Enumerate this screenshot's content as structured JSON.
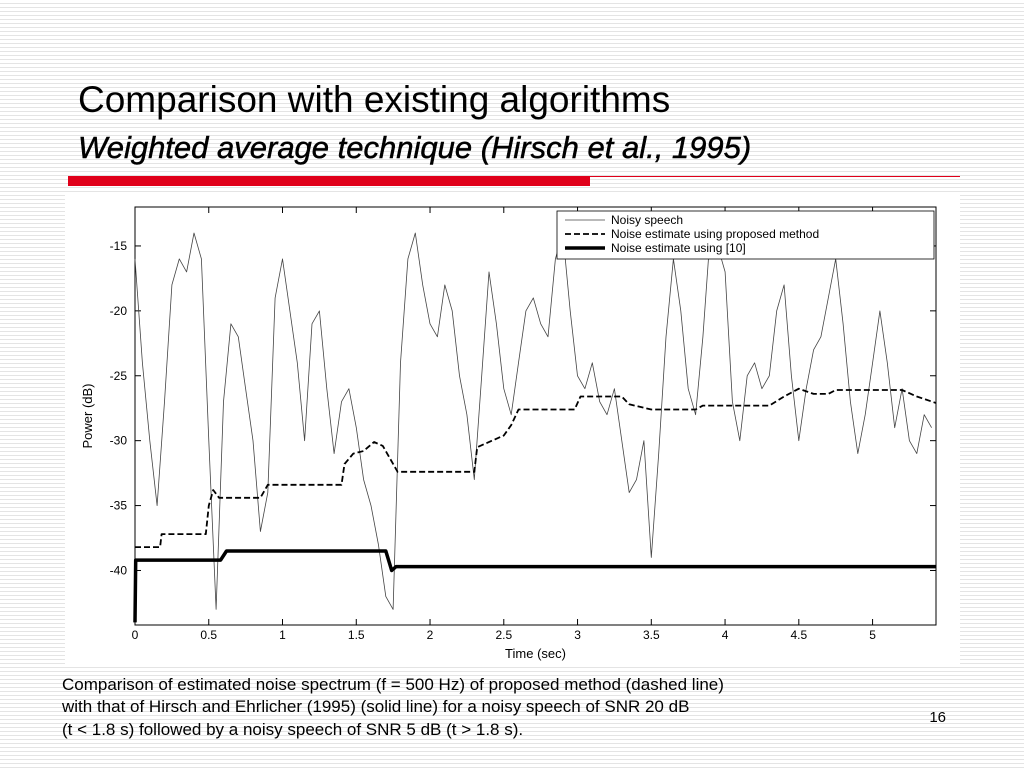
{
  "slide": {
    "title": "Comparison with existing algorithms",
    "subtitle": "Weighted average technique (Hirsch et al., 1995)",
    "caption": [
      "Comparison of estimated noise spectrum (f = 500 Hz) of proposed method (dashed line)",
      "with that of Hirsch and Ehrlicher (1995) (solid line) for a noisy speech of SNR 20 dB",
      "(t < 1.8 s) followed by a noisy speech of SNR 5 dB (t > 1.8 s)."
    ],
    "page_number": "16"
  },
  "chart_data": {
    "type": "line",
    "x_label": "Time (sec)",
    "y_label": "Power (dB)",
    "xlim": [
      0,
      5.43
    ],
    "ylim": [
      -44.2,
      -12
    ],
    "xticks": [
      0,
      0.5,
      1,
      1.5,
      2,
      2.5,
      3,
      3.5,
      4,
      4.5,
      5
    ],
    "yticks": [
      -15,
      -20,
      -25,
      -30,
      -35,
      -40
    ],
    "legend": "top-right",
    "series": [
      {
        "name": "Noisy speech",
        "color": "#444444",
        "style": "thin",
        "x": [
          0,
          0.05,
          0.1,
          0.15,
          0.2,
          0.25,
          0.3,
          0.35,
          0.4,
          0.45,
          0.5,
          0.55,
          0.6,
          0.65,
          0.7,
          0.75,
          0.8,
          0.85,
          0.9,
          0.95,
          1,
          1.05,
          1.1,
          1.15,
          1.2,
          1.25,
          1.3,
          1.35,
          1.4,
          1.45,
          1.5,
          1.55,
          1.6,
          1.65,
          1.7,
          1.75,
          1.8,
          1.85,
          1.9,
          1.95,
          2,
          2.05,
          2.1,
          2.15,
          2.2,
          2.25,
          2.3,
          2.35,
          2.4,
          2.45,
          2.5,
          2.55,
          2.6,
          2.65,
          2.7,
          2.75,
          2.8,
          2.85,
          2.9,
          2.95,
          3,
          3.05,
          3.1,
          3.15,
          3.2,
          3.25,
          3.3,
          3.35,
          3.4,
          3.45,
          3.5,
          3.55,
          3.6,
          3.65,
          3.7,
          3.75,
          3.8,
          3.85,
          3.9,
          3.95,
          4,
          4.05,
          4.1,
          4.15,
          4.2,
          4.25,
          4.3,
          4.35,
          4.4,
          4.45,
          4.5,
          4.55,
          4.6,
          4.65,
          4.7,
          4.75,
          4.8,
          4.85,
          4.9,
          4.95,
          5,
          5.05,
          5.1,
          5.15,
          5.2,
          5.25,
          5.3,
          5.35,
          5.4
        ],
        "values": [
          -16,
          -24,
          -30,
          -35,
          -27,
          -18,
          -16,
          -17,
          -14,
          -16,
          -30,
          -43,
          -27,
          -21,
          -22,
          -26,
          -30,
          -37,
          -34,
          -19,
          -16,
          -20,
          -24,
          -30,
          -21,
          -20,
          -26,
          -31,
          -27,
          -26,
          -29,
          -33,
          -35,
          -38,
          -42,
          -43,
          -24,
          -16,
          -14,
          -18,
          -21,
          -22,
          -18,
          -20,
          -25,
          -28,
          -33,
          -25,
          -17,
          -21,
          -26,
          -28,
          -24,
          -20,
          -19,
          -21,
          -22,
          -16,
          -14,
          -20,
          -25,
          -26,
          -24,
          -27,
          -28,
          -26,
          -30,
          -34,
          -33,
          -30,
          -39,
          -31,
          -22,
          -16,
          -20,
          -26,
          -28,
          -22,
          -14,
          -15,
          -17,
          -27,
          -30,
          -25,
          -24,
          -26,
          -25,
          -20,
          -18,
          -25,
          -30,
          -26,
          -23,
          -22,
          -19,
          -16,
          -21,
          -27,
          -31,
          -28,
          -24,
          -20,
          -24,
          -29,
          -26,
          -30,
          -31,
          -28,
          -29
        ]
      },
      {
        "name": "Noise estimate using proposed method",
        "color": "#000000",
        "style": "dashed",
        "x": [
          0,
          0.17,
          0.18,
          0.48,
          0.5,
          0.53,
          0.57,
          0.85,
          0.9,
          1.4,
          1.42,
          1.48,
          1.55,
          1.62,
          1.68,
          1.78,
          2.3,
          2.32,
          2.5,
          2.55,
          2.6,
          2.98,
          3.02,
          3.3,
          3.35,
          3.5,
          3.8,
          3.85,
          4.3,
          4.4,
          4.5,
          4.6,
          4.7,
          4.75,
          5.2,
          5.3,
          5.43
        ],
        "values": [
          -38.2,
          -38.2,
          -37.2,
          -37.2,
          -35,
          -33.8,
          -34.4,
          -34.4,
          -33.4,
          -33.4,
          -31.8,
          -31,
          -30.8,
          -30.1,
          -30.4,
          -32.4,
          -32.4,
          -30.5,
          -29.6,
          -28.8,
          -27.6,
          -27.6,
          -26.6,
          -26.6,
          -27.2,
          -27.6,
          -27.6,
          -27.3,
          -27.3,
          -26.6,
          -26,
          -26.4,
          -26.4,
          -26.1,
          -26.1,
          -26.6,
          -27.1
        ]
      },
      {
        "name": "Noise estimate using [10]",
        "color": "#000000",
        "style": "thick",
        "x": [
          0,
          0.005,
          0.58,
          0.62,
          1.7,
          1.74,
          1.77,
          5.43
        ],
        "values": [
          -44,
          -39.2,
          -39.2,
          -38.5,
          -38.5,
          -40,
          -39.7,
          -39.7
        ]
      }
    ]
  }
}
